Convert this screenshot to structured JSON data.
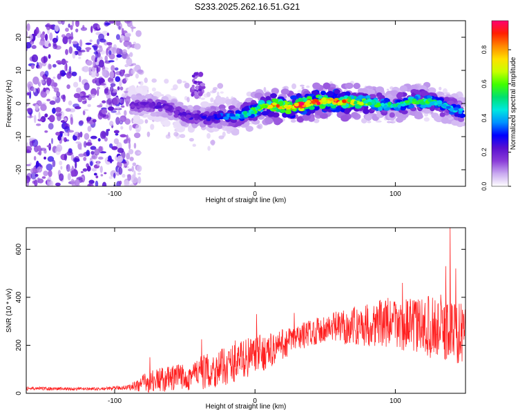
{
  "title": "S233.2025.262.16.51.G21",
  "chart_data": [
    {
      "type": "heatmap",
      "name": "spectrogram",
      "xlabel": "Height of straight line (km)",
      "ylabel": "Frequency (Hz)",
      "xlim": [
        -163,
        150
      ],
      "ylim": [
        -25,
        25
      ],
      "xticks": [
        -100,
        0,
        100
      ],
      "yticks": [
        -20,
        -10,
        0,
        10,
        20
      ],
      "colorbar": {
        "label": "Normalized spectral amplitude",
        "range": [
          0,
          0.97
        ],
        "ticks": [
          0.0,
          0.2,
          0.4,
          0.6,
          0.8
        ],
        "tick_labels": [
          "0.0",
          "0.2",
          "0.4",
          "0.6",
          "0.8"
        ],
        "colormap": [
          "#ffffff",
          "#c9a9f0",
          "#8a3cd8",
          "#5a10d0",
          "#0000ff",
          "#0090ff",
          "#00e8e0",
          "#00e070",
          "#40ff00",
          "#c8ff00",
          "#ffe000",
          "#ff8800",
          "#ff2000",
          "#ff0070"
        ]
      },
      "ridge": {
        "x": [
          -88,
          -80,
          -70,
          -60,
          -50,
          -40,
          -30,
          -20,
          -10,
          0,
          10,
          20,
          30,
          40,
          50,
          60,
          70,
          80,
          90,
          100,
          110,
          120,
          130,
          140,
          148
        ],
        "y": [
          0,
          0,
          -1,
          -2,
          -3,
          -4,
          -5,
          -4,
          -3,
          -2,
          -1,
          -1,
          0,
          0,
          0,
          1,
          1,
          0,
          -1,
          0,
          1,
          0,
          0,
          -1,
          -2
        ],
        "peak_amplitude": [
          0.2,
          0.2,
          0.22,
          0.2,
          0.22,
          0.25,
          0.3,
          0.35,
          0.45,
          0.55,
          0.8,
          0.8,
          0.9,
          0.9,
          0.85,
          0.9,
          0.7,
          0.6,
          0.55,
          0.5,
          0.55,
          0.6,
          0.5,
          0.45,
          0.4
        ]
      },
      "noise_region": {
        "x_from": -163,
        "x_to": -88,
        "level": 0.15
      }
    },
    {
      "type": "line",
      "name": "snr",
      "xlabel": "Height of straight line (km)",
      "ylabel": "SNR (10 * v/v)",
      "xlim": [
        -163,
        150
      ],
      "ylim": [
        0,
        690
      ],
      "xticks": [
        -100,
        0,
        100
      ],
      "yticks": [
        0,
        200,
        400,
        600
      ],
      "color": "#ff2020",
      "envelope": {
        "x": [
          -163,
          -110,
          -90,
          -80,
          -70,
          -60,
          -50,
          -40,
          -30,
          -20,
          -10,
          0,
          10,
          20,
          30,
          40,
          50,
          60,
          70,
          80,
          90,
          100,
          110,
          120,
          130,
          140,
          150
        ],
        "mean": [
          20,
          18,
          25,
          40,
          55,
          60,
          70,
          85,
          95,
          115,
          140,
          160,
          175,
          205,
          230,
          255,
          270,
          275,
          280,
          285,
          295,
          290,
          285,
          280,
          275,
          260,
          250
        ],
        "spread": [
          8,
          6,
          10,
          40,
          50,
          55,
          60,
          70,
          75,
          80,
          85,
          80,
          75,
          65,
          60,
          55,
          60,
          70,
          80,
          90,
          100,
          110,
          110,
          120,
          140,
          140,
          120
        ]
      },
      "spikes": [
        {
          "x": -75,
          "y": 150
        },
        {
          "x": -38,
          "y": 225
        },
        {
          "x": -14,
          "y": 220
        },
        {
          "x": 1,
          "y": 330
        },
        {
          "x": 28,
          "y": 335
        },
        {
          "x": 105,
          "y": 460
        },
        {
          "x": 136,
          "y": 530
        },
        {
          "x": 139,
          "y": 690
        },
        {
          "x": 143,
          "y": 520
        }
      ]
    }
  ]
}
